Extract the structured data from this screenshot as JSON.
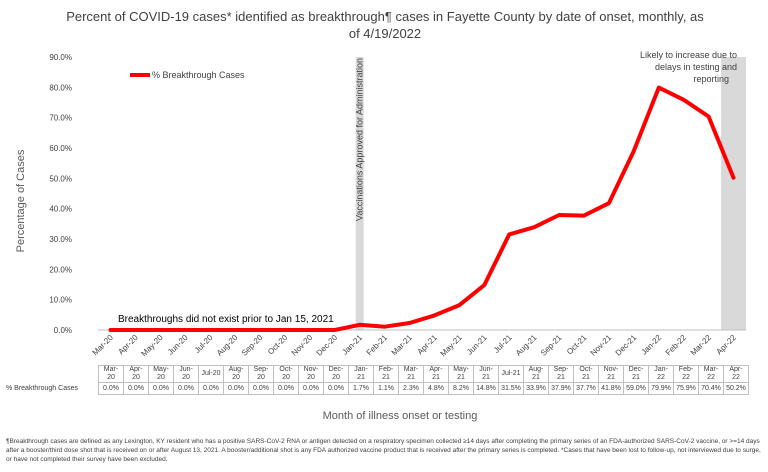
{
  "chart_data": {
    "type": "line",
    "title": "Percent of COVID-19 cases* identified as breakthrough¶ cases in Fayette County by date of onset, monthly, as of 4/19/2022",
    "xlabel": "Month of illness onset or testing",
    "ylabel": "Percentage of Cases",
    "ylim": [
      0,
      90
    ],
    "yticks": [
      "0.0%",
      "10.0%",
      "20.0%",
      "30.0%",
      "40.0%",
      "50.0%",
      "60.0%",
      "70.0%",
      "80.0%",
      "90.0%"
    ],
    "ytick_values": [
      0,
      10,
      20,
      30,
      40,
      50,
      60,
      70,
      80,
      90
    ],
    "grid": false,
    "legend_position": "top-left",
    "categories": [
      "Mar-20",
      "Apr-20",
      "May-20",
      "Jun-20",
      "Jul-20",
      "Aug-20",
      "Sep-20",
      "Oct-20",
      "Nov-20",
      "Dec-20",
      "Jan-21",
      "Feb-21",
      "Mar-21",
      "Apr-21",
      "May-21",
      "Jun-21",
      "Jul-21",
      "Aug-21",
      "Sep-21",
      "Oct-21",
      "Nov-21",
      "Dec-21",
      "Jan-22",
      "Feb-22",
      "Mar-22",
      "Apr-22"
    ],
    "series": [
      {
        "name": "% Breakthrough Cases",
        "color": "#ff0000",
        "values": [
          0,
          0,
          0,
          0,
          0,
          0,
          0,
          0,
          0,
          0,
          1.7,
          1.1,
          2.3,
          4.8,
          8.2,
          14.8,
          31.5,
          33.9,
          37.9,
          37.7,
          41.8,
          59.0,
          79.9,
          75.9,
          70.4,
          50.2
        ]
      }
    ],
    "table": {
      "row_label": "% Breakthrough Cases",
      "header_lines": [
        [
          "Mar-",
          "20"
        ],
        [
          "Apr-",
          "20"
        ],
        [
          "May-",
          "20"
        ],
        [
          "Jun-",
          "20"
        ],
        [
          "Jul-20"
        ],
        [
          "Aug-",
          "20"
        ],
        [
          "Sep-",
          "20"
        ],
        [
          "Oct-",
          "20"
        ],
        [
          "Nov-",
          "20"
        ],
        [
          "Dec-",
          "20"
        ],
        [
          "Jan-",
          "21"
        ],
        [
          "Feb-",
          "21"
        ],
        [
          "Mar-",
          "21"
        ],
        [
          "Apr-",
          "21"
        ],
        [
          "May-",
          "21"
        ],
        [
          "Jun-",
          "21"
        ],
        [
          "Jul-21"
        ],
        [
          "Aug-",
          "21"
        ],
        [
          "Sep-",
          "21"
        ],
        [
          "Oct-",
          "21"
        ],
        [
          "Nov-",
          "21"
        ],
        [
          "Dec-",
          "21"
        ],
        [
          "Jan-",
          "22"
        ],
        [
          "Feb-",
          "22"
        ],
        [
          "Mar-",
          "22"
        ],
        [
          "Apr-",
          "22"
        ]
      ],
      "cells": [
        "0.0%",
        "0.0%",
        "0.0%",
        "0.0%",
        "0.0%",
        "0.0%",
        "0.0%",
        "0.0%",
        "0.0%",
        "0.0%",
        "1.7%",
        "1.1%",
        "2.3%",
        "4.8%",
        "8.2%",
        "14.8%",
        "31.5%",
        "33.9%",
        "37.9%",
        "37.7%",
        "41.8%",
        "59.0%",
        "79.9%",
        "75.9%",
        "70.4%",
        "50.2%"
      ]
    },
    "annotations": {
      "vaccine_line_label": "Vaccinations Approved for Administration",
      "vaccine_line_at": "Jan-21",
      "shaded_period": "Apr-22",
      "shaded_label": "Likely to increase due to delays in testing and reporting",
      "pre_2021_note": "Breakthroughs did not exist prior to Jan 15, 2021"
    }
  },
  "footnote": "¶Breakthrough cases are defined as any Lexington, KY resident who has a positive SARS-CoV-2 RNA or antigen detected on a respiratory specimen collected ≥14 days after completing the primary series of an FDA-authorized SARS-CoV-2 vaccine, or >=14 days after a booster/third dose shot that is received on or after August 13, 2021.  A booster/additional shot is any FDA authorized vaccine product that is received after the primary series is completed. *Cases that have been lost to follow-up, not interviewed due to surge, or have not completed their survey have been excluded."
}
